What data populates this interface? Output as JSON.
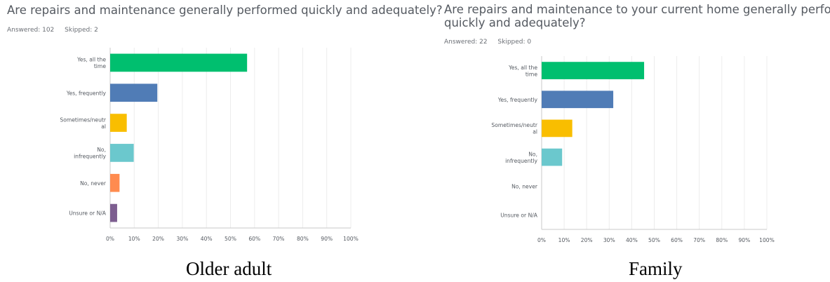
{
  "charts": [
    {
      "title": "Are repairs and maintenance generally performed quickly and adequately?",
      "answered": "Answered: 102",
      "skipped": "Skipped: 2",
      "caption": "Older adult"
    },
    {
      "title_line1": "Are repairs and maintenance to your current home generally performed",
      "title_line2": "quickly and adequately?",
      "answered": "Answered: 22",
      "skipped": "Skipped: 0",
      "caption": "Family"
    }
  ],
  "chart_data": [
    {
      "type": "bar",
      "orientation": "horizontal",
      "categories": [
        [
          "Yes, all the",
          "time"
        ],
        [
          "Yes, frequently"
        ],
        [
          "Sometimes/neutr",
          "al"
        ],
        [
          "No,",
          "infrequently"
        ],
        [
          "No, never"
        ],
        [
          "Unsure or N/A"
        ]
      ],
      "values": [
        56.9,
        19.6,
        6.9,
        9.8,
        3.9,
        2.9
      ],
      "xlim": [
        0,
        100
      ],
      "xticks": [
        "0%",
        "10%",
        "20%",
        "30%",
        "40%",
        "50%",
        "60%",
        "70%",
        "80%",
        "90%",
        "100%"
      ],
      "grid": true,
      "colors": [
        "#00bf6f",
        "#507cb6",
        "#f9be00",
        "#6bc8cd",
        "#ff8b4f",
        "#7d5e90"
      ]
    },
    {
      "type": "bar",
      "orientation": "horizontal",
      "categories": [
        [
          "Yes, all the",
          "time"
        ],
        [
          "Yes, frequently"
        ],
        [
          "Sometimes/neutr",
          "al"
        ],
        [
          "No,",
          "infrequently"
        ],
        [
          "No, never"
        ],
        [
          "Unsure or N/A"
        ]
      ],
      "values": [
        45.5,
        31.8,
        13.6,
        9.1,
        0,
        0
      ],
      "xlim": [
        0,
        100
      ],
      "xticks": [
        "0%",
        "10%",
        "20%",
        "30%",
        "40%",
        "50%",
        "60%",
        "70%",
        "80%",
        "90%",
        "100%"
      ],
      "grid": true,
      "colors": [
        "#00bf6f",
        "#507cb6",
        "#f9be00",
        "#6bc8cd",
        "#ff8b4f",
        "#7d5e90"
      ]
    }
  ]
}
